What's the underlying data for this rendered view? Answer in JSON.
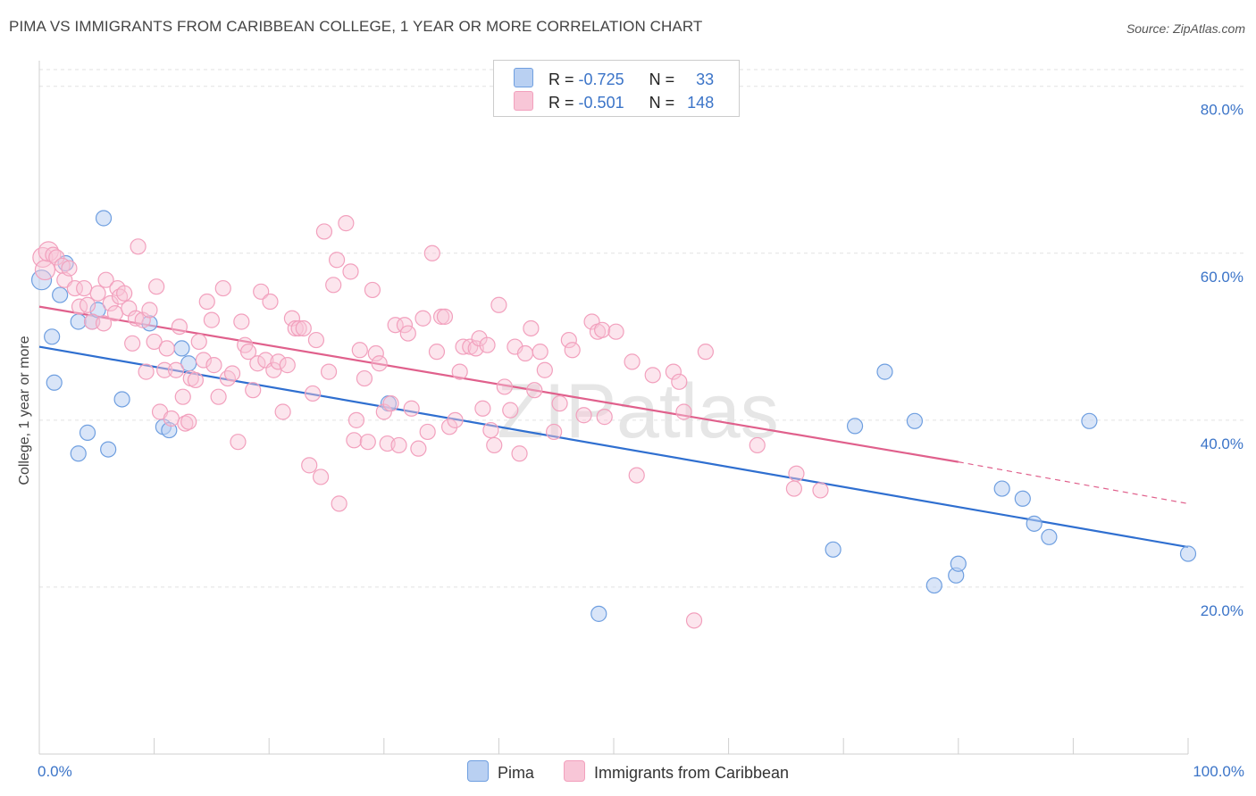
{
  "header": {
    "title": "PIMA VS IMMIGRANTS FROM CARIBBEAN COLLEGE, 1 YEAR OR MORE CORRELATION CHART",
    "source": "Source: ZipAtlas.com"
  },
  "legend_box": {
    "rows": [
      {
        "r_label": "R =",
        "r_value": "-0.725",
        "n_label": "N =",
        "n_value": "33"
      },
      {
        "r_label": "R =",
        "r_value": "-0.501",
        "n_label": "N =",
        "n_value": "148"
      }
    ]
  },
  "watermark": "ZIPatlas",
  "chart_data": {
    "type": "scatter",
    "ylabel": "College, 1 year or more",
    "xlim": [
      0,
      100
    ],
    "ylim": [
      0,
      82
    ],
    "x_ticks": [
      "0.0%",
      "100.0%"
    ],
    "y_ticks": [
      {
        "value": 20,
        "label": "20.0%"
      },
      {
        "value": 40,
        "label": "40.0%"
      },
      {
        "value": 60,
        "label": "60.0%"
      },
      {
        "value": 80,
        "label": "80.0%"
      }
    ],
    "grid": true,
    "legend_position": "bottom-center",
    "colors": {
      "pima": "#6f9fe0",
      "caribbean": "#f2a0bd",
      "pima_line": "#2f6fd0",
      "caribbean_line": "#e0608c",
      "tick": "#3b74c8"
    },
    "series": [
      {
        "name": "Pima",
        "trend": {
          "x0": 0,
          "y0": 48.8,
          "x1": 100,
          "y1": 24.8
        },
        "points": [
          [
            0.2,
            56.8
          ],
          [
            1.1,
            50.0
          ],
          [
            1.3,
            44.5
          ],
          [
            1.8,
            55.0
          ],
          [
            2.3,
            58.8
          ],
          [
            3.4,
            51.8
          ],
          [
            3.4,
            36.0
          ],
          [
            4.2,
            38.5
          ],
          [
            4.6,
            51.8
          ],
          [
            5.1,
            53.2
          ],
          [
            5.6,
            64.2
          ],
          [
            6.0,
            36.5
          ],
          [
            7.2,
            42.5
          ],
          [
            9.6,
            51.6
          ],
          [
            10.8,
            39.2
          ],
          [
            11.3,
            38.8
          ],
          [
            12.4,
            48.6
          ],
          [
            13.0,
            46.8
          ],
          [
            30.4,
            42.0
          ],
          [
            48.7,
            16.8
          ],
          [
            69.1,
            24.5
          ],
          [
            71.0,
            39.3
          ],
          [
            73.6,
            45.8
          ],
          [
            76.2,
            39.9
          ],
          [
            77.9,
            20.2
          ],
          [
            79.8,
            21.4
          ],
          [
            80.0,
            22.8
          ],
          [
            83.8,
            31.8
          ],
          [
            85.6,
            30.6
          ],
          [
            86.6,
            27.6
          ],
          [
            87.9,
            26.0
          ],
          [
            91.4,
            39.9
          ],
          [
            100.0,
            24.0
          ]
        ]
      },
      {
        "name": "Immigrants from Caribbean",
        "trend": {
          "x0": 0,
          "y0": 53.6,
          "x1": 80,
          "y1": 35.0,
          "dash_to_x": 100,
          "dash_to_y": 30.0
        },
        "points": [
          [
            0.3,
            59.5
          ],
          [
            0.5,
            58.0
          ],
          [
            0.8,
            60.2
          ],
          [
            1.2,
            59.8
          ],
          [
            1.5,
            59.5
          ],
          [
            2.0,
            58.5
          ],
          [
            2.2,
            56.8
          ],
          [
            2.6,
            58.2
          ],
          [
            3.1,
            55.8
          ],
          [
            3.5,
            53.6
          ],
          [
            3.9,
            55.8
          ],
          [
            4.2,
            53.8
          ],
          [
            4.6,
            51.8
          ],
          [
            5.1,
            55.2
          ],
          [
            5.6,
            51.6
          ],
          [
            5.8,
            56.8
          ],
          [
            6.2,
            54.0
          ],
          [
            6.6,
            52.8
          ],
          [
            6.8,
            55.8
          ],
          [
            7.0,
            54.8
          ],
          [
            7.4,
            55.2
          ],
          [
            7.8,
            53.4
          ],
          [
            8.1,
            49.2
          ],
          [
            8.4,
            52.2
          ],
          [
            8.6,
            60.8
          ],
          [
            9.0,
            52.0
          ],
          [
            9.3,
            45.8
          ],
          [
            9.6,
            53.2
          ],
          [
            10.0,
            49.4
          ],
          [
            10.2,
            56.0
          ],
          [
            10.5,
            41.0
          ],
          [
            10.9,
            46.0
          ],
          [
            11.1,
            48.6
          ],
          [
            11.5,
            40.2
          ],
          [
            11.9,
            46.0
          ],
          [
            12.2,
            51.2
          ],
          [
            12.5,
            42.8
          ],
          [
            12.7,
            39.6
          ],
          [
            13.0,
            39.8
          ],
          [
            13.2,
            45.0
          ],
          [
            13.6,
            44.8
          ],
          [
            13.9,
            49.4
          ],
          [
            14.3,
            47.2
          ],
          [
            14.6,
            54.2
          ],
          [
            15.0,
            52.0
          ],
          [
            15.2,
            46.6
          ],
          [
            15.6,
            42.8
          ],
          [
            16.0,
            55.8
          ],
          [
            16.4,
            45.0
          ],
          [
            16.8,
            45.6
          ],
          [
            17.3,
            37.4
          ],
          [
            17.6,
            51.8
          ],
          [
            17.9,
            49.0
          ],
          [
            18.2,
            48.2
          ],
          [
            18.6,
            43.6
          ],
          [
            19.0,
            46.8
          ],
          [
            19.3,
            55.4
          ],
          [
            19.7,
            47.2
          ],
          [
            20.1,
            54.2
          ],
          [
            20.4,
            46.0
          ],
          [
            20.8,
            47.0
          ],
          [
            21.2,
            41.0
          ],
          [
            21.6,
            46.6
          ],
          [
            22.0,
            52.2
          ],
          [
            22.3,
            51.0
          ],
          [
            22.6,
            51.0
          ],
          [
            23.0,
            51.0
          ],
          [
            23.5,
            34.6
          ],
          [
            23.8,
            43.2
          ],
          [
            24.1,
            49.6
          ],
          [
            24.5,
            33.2
          ],
          [
            24.8,
            62.6
          ],
          [
            25.2,
            45.8
          ],
          [
            25.6,
            56.2
          ],
          [
            25.9,
            59.2
          ],
          [
            26.1,
            30.0
          ],
          [
            26.7,
            63.6
          ],
          [
            27.1,
            57.8
          ],
          [
            27.4,
            37.6
          ],
          [
            27.6,
            40.0
          ],
          [
            27.9,
            48.4
          ],
          [
            28.3,
            45.0
          ],
          [
            28.6,
            37.4
          ],
          [
            29.0,
            55.6
          ],
          [
            29.3,
            48.0
          ],
          [
            29.6,
            46.8
          ],
          [
            30.0,
            41.0
          ],
          [
            30.3,
            37.2
          ],
          [
            30.6,
            42.0
          ],
          [
            31.0,
            51.4
          ],
          [
            31.3,
            37.0
          ],
          [
            31.8,
            51.4
          ],
          [
            32.1,
            50.4
          ],
          [
            32.4,
            41.4
          ],
          [
            33.0,
            36.6
          ],
          [
            33.4,
            52.2
          ],
          [
            33.8,
            38.6
          ],
          [
            34.2,
            60.0
          ],
          [
            34.6,
            48.2
          ],
          [
            35.0,
            52.4
          ],
          [
            35.3,
            52.4
          ],
          [
            35.7,
            39.2
          ],
          [
            36.2,
            40.0
          ],
          [
            36.6,
            45.8
          ],
          [
            36.9,
            48.8
          ],
          [
            37.5,
            48.8
          ],
          [
            38.0,
            48.6
          ],
          [
            38.3,
            49.8
          ],
          [
            38.6,
            41.4
          ],
          [
            39.0,
            49.0
          ],
          [
            39.3,
            38.8
          ],
          [
            39.6,
            37.0
          ],
          [
            40.0,
            53.8
          ],
          [
            40.5,
            44.0
          ],
          [
            41.0,
            41.2
          ],
          [
            41.4,
            48.8
          ],
          [
            41.8,
            36.0
          ],
          [
            42.3,
            48.0
          ],
          [
            42.8,
            51.0
          ],
          [
            43.1,
            43.6
          ],
          [
            43.6,
            48.2
          ],
          [
            44.0,
            46.0
          ],
          [
            44.8,
            38.6
          ],
          [
            45.3,
            42.0
          ],
          [
            46.1,
            49.6
          ],
          [
            46.4,
            48.4
          ],
          [
            47.4,
            40.6
          ],
          [
            48.1,
            51.8
          ],
          [
            48.6,
            50.6
          ],
          [
            49.0,
            50.8
          ],
          [
            49.2,
            40.4
          ],
          [
            50.2,
            50.6
          ],
          [
            51.6,
            47.0
          ],
          [
            52.0,
            33.4
          ],
          [
            53.4,
            45.4
          ],
          [
            55.2,
            45.8
          ],
          [
            55.7,
            44.6
          ],
          [
            56.1,
            41.0
          ],
          [
            57.0,
            16.0
          ],
          [
            58.0,
            48.2
          ],
          [
            62.5,
            37.0
          ],
          [
            65.7,
            31.8
          ],
          [
            65.9,
            33.6
          ],
          [
            68.0,
            31.6
          ]
        ]
      }
    ]
  },
  "bottom_legend": [
    {
      "label": "Pima"
    },
    {
      "label": "Immigrants from Caribbean"
    }
  ]
}
